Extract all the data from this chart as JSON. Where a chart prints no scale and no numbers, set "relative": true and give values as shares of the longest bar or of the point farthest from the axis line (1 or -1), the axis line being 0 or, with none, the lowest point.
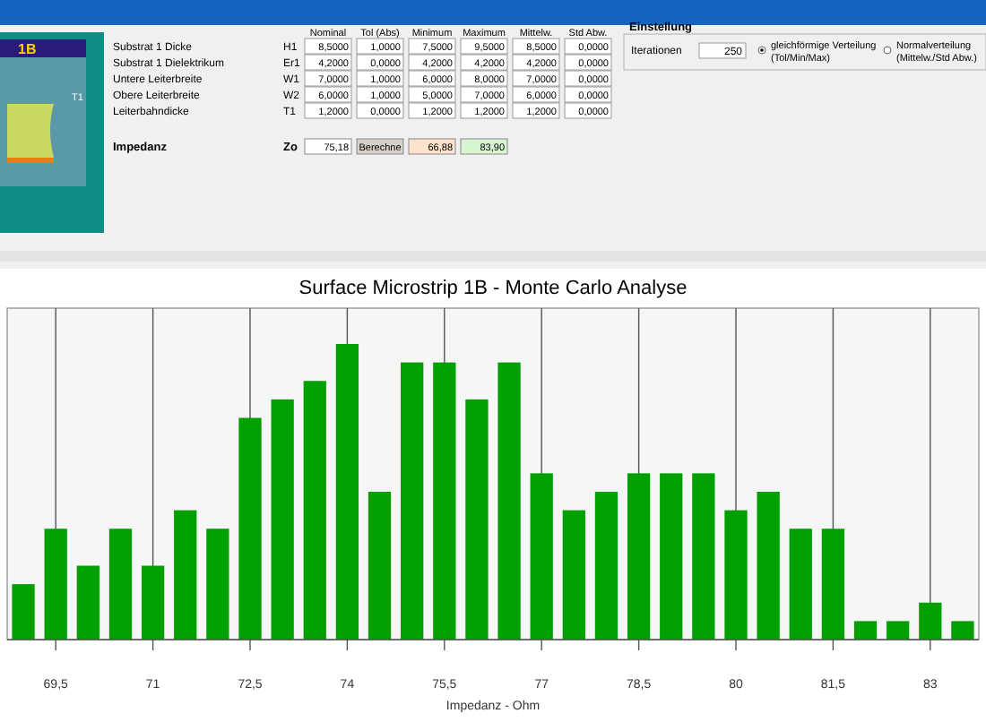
{
  "chart_data": [
    {
      "type": "other",
      "annotations": [
        "Nominal",
        "Tol (Abs)",
        "Minimum",
        "Maximum",
        "Mittelw.",
        "Std Abw.",
        "Substrat 1 Dicke",
        "H1",
        "8,5000",
        "1,0000",
        "7,5000",
        "9,5000",
        "8,5000",
        "0,0000",
        "Substrat 1 Dielektrikum",
        "Er1",
        "4,2000",
        "0,0000",
        "4,2000",
        "4,2000",
        "4,2000",
        "0,0000",
        "Untere Leiterbreite",
        "W1",
        "7,0000",
        "1,0000",
        "6,0000",
        "8,0000",
        "7,0000",
        "0,0000",
        "Obere Leiterbreite",
        "W2",
        "6,0000",
        "1,0000",
        "5,0000",
        "7,0000",
        "6,0000",
        "0,0000",
        "Leiterbahndicke",
        "T1",
        "1,2000",
        "0,0000",
        "1,2000",
        "1,2000",
        "1,2000",
        "0,0000",
        "Impedanz",
        "Zo",
        "75,18",
        "Berechne",
        "66,88",
        "83,90",
        "Einstellung",
        "Iterationen",
        "250",
        "gleichförmige Verteilung",
        "(Tol/Min/Max)",
        "Normalverteilung",
        "(Mittelw./Std Abw.)",
        "1B",
        "T1"
      ]
    },
    {
      "type": "bar",
      "title": "Surface Microstrip 1B - Monte Carlo Analyse",
      "xlabel": "Impedanz - Ohm",
      "relative": true,
      "color": "#00a000",
      "x": [
        69,
        69.5,
        70,
        70.5,
        71,
        71.5,
        72,
        72.5,
        73,
        73.5,
        74,
        74.5,
        75,
        75.5,
        76,
        76.5,
        77,
        77.5,
        78,
        78.5,
        79,
        79.5,
        80,
        80.5,
        81,
        81.5,
        82,
        82.5,
        83,
        83.5
      ],
      "values": [
        0.1875,
        0.375,
        0.25,
        0.375,
        0.25,
        0.4375,
        0.375,
        0.75,
        0.8125,
        0.875,
        1,
        0.5,
        0.9375,
        0.9375,
        0.8125,
        0.9375,
        0.5625,
        0.4375,
        0.5,
        0.5625,
        0.5625,
        0.5625,
        0.4375,
        0.5,
        0.375,
        0.375,
        0.0625,
        0.0625,
        0.125,
        0.0625
      ],
      "xlim": [
        68.75,
        83.75
      ],
      "xticks": [
        {
          "value": 69.5,
          "label": "69,5"
        },
        {
          "value": 71,
          "label": "71"
        },
        {
          "value": 72.5,
          "label": "72,5"
        },
        {
          "value": 74,
          "label": "74"
        },
        {
          "value": 75.5,
          "label": "75,5"
        },
        {
          "value": 77,
          "label": "77"
        },
        {
          "value": 78.5,
          "label": "78,5"
        },
        {
          "value": 80,
          "label": "80"
        },
        {
          "value": 81.5,
          "label": "81,5"
        },
        {
          "value": 83,
          "label": "83"
        }
      ],
      "grid": "x"
    }
  ]
}
